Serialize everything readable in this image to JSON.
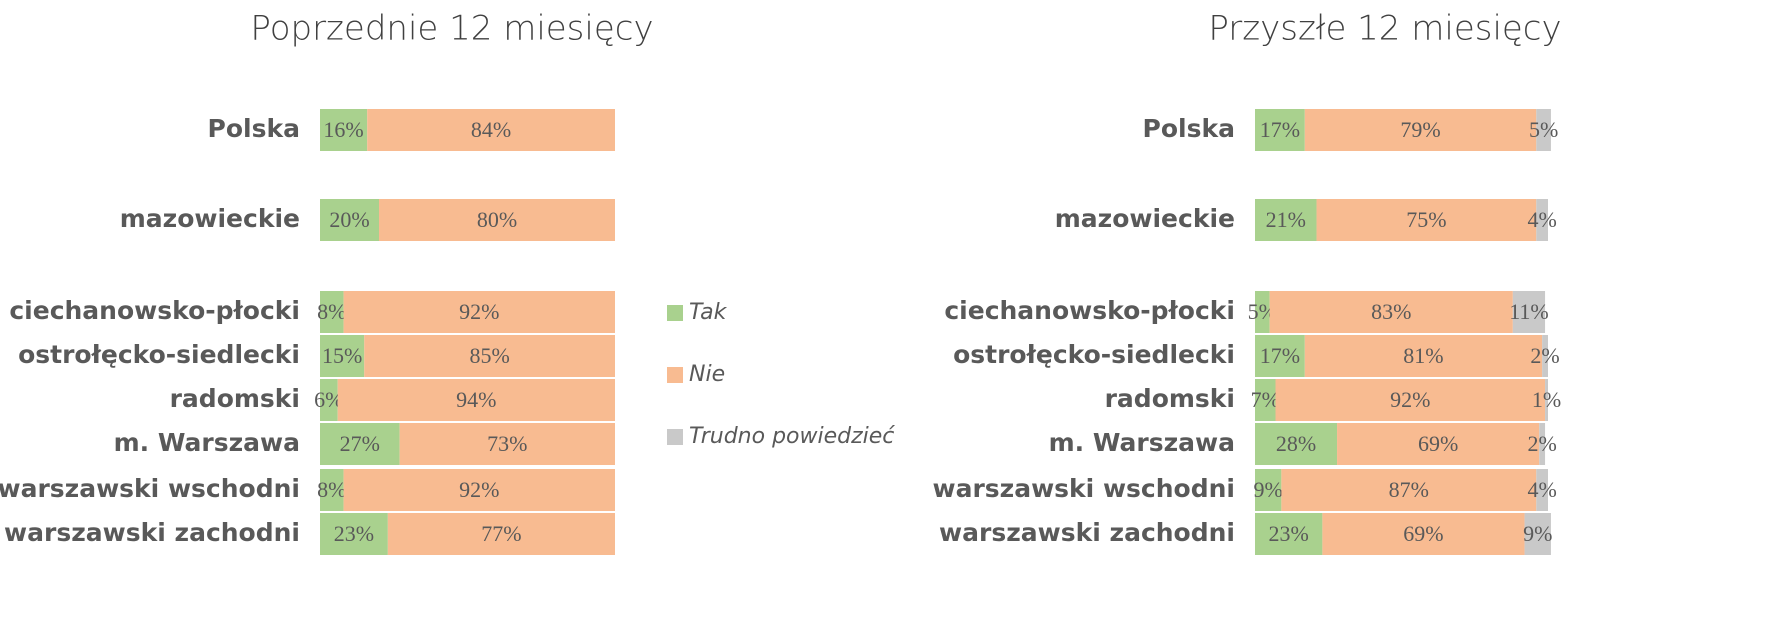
{
  "chart_data": [
    {
      "type": "stacked-bar-horizontal",
      "title": "Poprzednie 12 miesięcy",
      "categories": [
        "Polska",
        "mazowieckie",
        "ciechanowsko-płocki",
        "ostrołęcko-siedlecki",
        "radomski",
        "m. Warszawa",
        "warszawski wschodni",
        "warszawski zachodni"
      ],
      "xlim": [
        0,
        100
      ],
      "series": [
        {
          "name": "Tak",
          "color": "#a9d18e",
          "values": [
            16,
            20,
            8,
            15,
            6,
            27,
            8,
            23
          ],
          "value_labels": [
            "16%",
            "20%",
            "8%",
            "15%",
            "6%",
            "27%",
            "8%",
            "23%"
          ]
        },
        {
          "name": "Nie",
          "color": "#f8bb91",
          "values": [
            84,
            80,
            92,
            85,
            94,
            73,
            92,
            77
          ],
          "value_labels": [
            "84%",
            "80%",
            "92%",
            "85%",
            "94%",
            "73%",
            "92%",
            "77%"
          ]
        }
      ]
    },
    {
      "type": "stacked-bar-horizontal",
      "title": "Przyszłe 12 miesięcy",
      "categories": [
        "Polska",
        "mazowieckie",
        "ciechanowsko-płocki",
        "ostrołęcko-siedlecki",
        "radomski",
        "m. Warszawa",
        "warszawski wschodni",
        "warszawski zachodni"
      ],
      "xlim": [
        0,
        100
      ],
      "series": [
        {
          "name": "Tak",
          "color": "#a9d18e",
          "values": [
            17,
            21,
            5,
            17,
            7,
            28,
            9,
            23
          ],
          "value_labels": [
            "17%",
            "21%",
            "5%",
            "17%",
            "7%",
            "28%",
            "9%",
            "23%"
          ]
        },
        {
          "name": "Nie",
          "color": "#f8bb91",
          "values": [
            79,
            75,
            83,
            81,
            92,
            69,
            87,
            69
          ],
          "value_labels": [
            "79%",
            "75%",
            "83%",
            "81%",
            "92%",
            "69%",
            "87%",
            "69%"
          ]
        },
        {
          "name": "Trudno powiedzieć",
          "color": "#c9c9c9",
          "values": [
            5,
            4,
            11,
            2,
            1,
            2,
            4,
            9
          ],
          "value_labels": [
            "5%",
            "4%",
            "11%",
            "2%",
            "1%",
            "2%",
            "4%",
            "9%"
          ]
        }
      ]
    }
  ]
}
